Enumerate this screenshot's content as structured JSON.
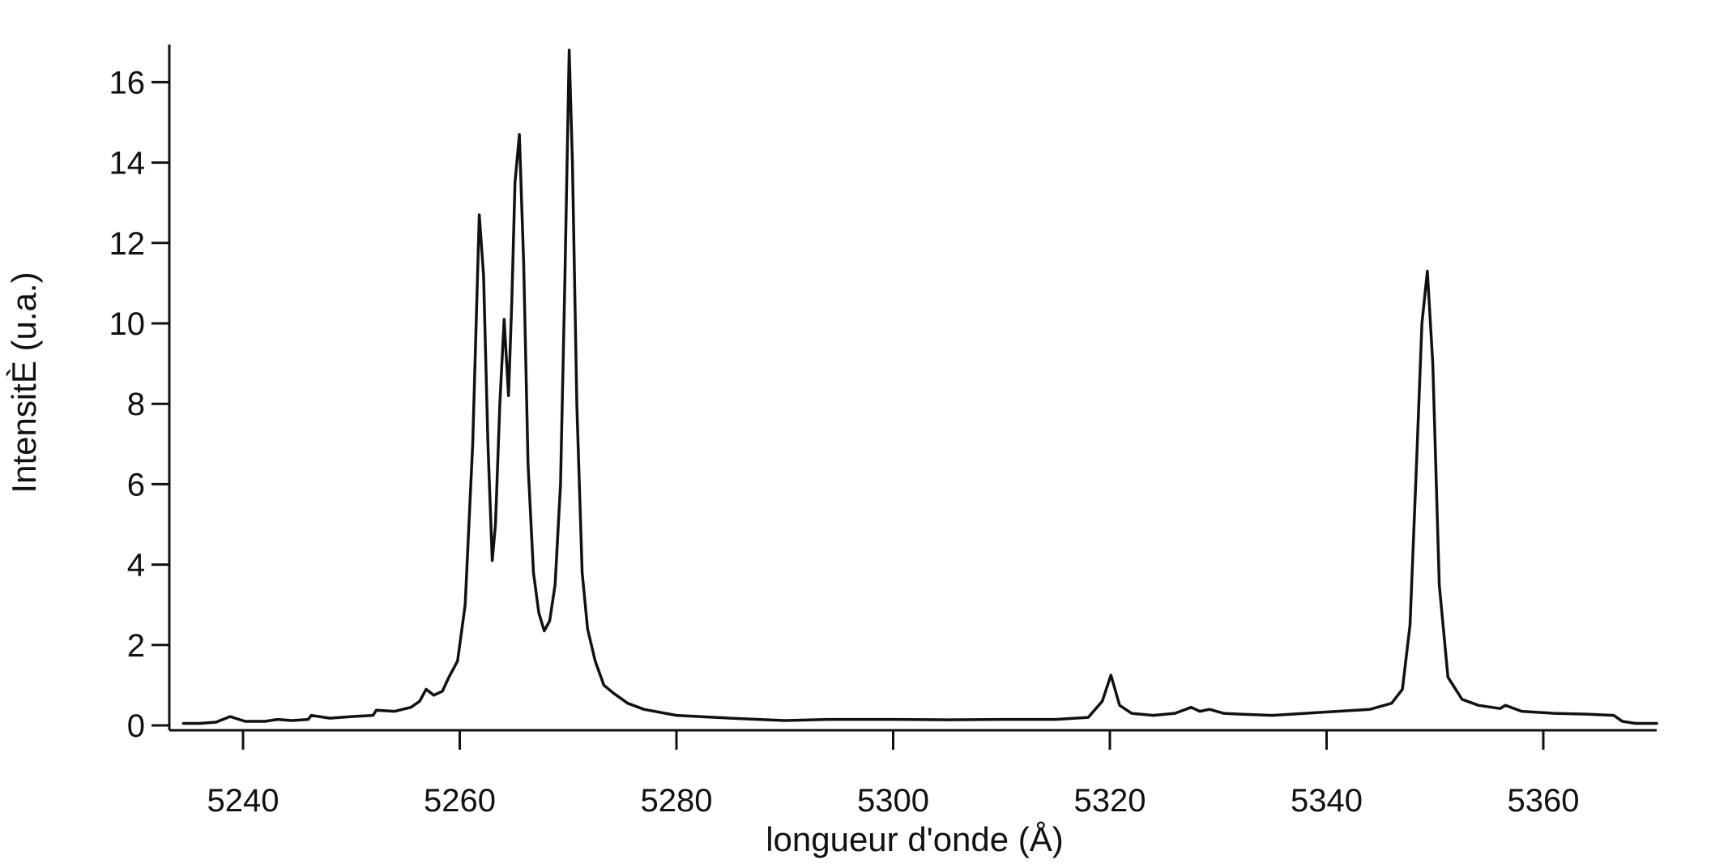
{
  "chart_data": {
    "type": "line",
    "title": "",
    "xlabel": "longueur d'onde (Å)",
    "ylabel": "IntensitÈ (u.a.)",
    "xlim": [
      5233.5,
      5371
    ],
    "ylim": [
      0,
      17
    ],
    "xticks": [
      5240,
      5260,
      5280,
      5300,
      5320,
      5340,
      5360
    ],
    "yticks": [
      0,
      2,
      4,
      6,
      8,
      10,
      12,
      14,
      16
    ],
    "grid": false,
    "legend": "none",
    "line_color": "#111111",
    "series": [
      {
        "x": [
          5234.5,
          5236,
          5237.5,
          5238.8,
          5240.2,
          5242,
          5243.2,
          5244.5,
          5246,
          5246.3,
          5248,
          5250,
          5252,
          5252.3,
          5254,
          5255.5,
          5256.3,
          5256.9,
          5257.6,
          5258.4,
          5259,
          5259.8,
          5260.5,
          5261.2,
          5261.8,
          5262.2,
          5262.6,
          5263,
          5263.3,
          5263.7,
          5264.1,
          5264.5,
          5264.8,
          5265.1,
          5265.5,
          5265.9,
          5266.3,
          5266.8,
          5267.3,
          5267.8,
          5268.3,
          5268.8,
          5269.3,
          5269.7,
          5270.1,
          5270.4,
          5270.8,
          5271.3,
          5271.8,
          5272.5,
          5273.3,
          5274.2,
          5275.5,
          5277,
          5280,
          5285,
          5290,
          5294,
          5300,
          5305,
          5310,
          5315,
          5318,
          5319.3,
          5320.1,
          5320.9,
          5322,
          5324,
          5326,
          5327.5,
          5328.3,
          5329.2,
          5330.5,
          5332,
          5335,
          5338,
          5341,
          5344,
          5346,
          5347,
          5347.7,
          5348.3,
          5348.8,
          5349.3,
          5349.8,
          5350.4,
          5351.2,
          5352.5,
          5354,
          5356,
          5356.5,
          5358,
          5361,
          5364,
          5366.5,
          5367.3,
          5368.5,
          5371
        ],
        "y": [
          0.05,
          0.05,
          0.08,
          0.22,
          0.1,
          0.1,
          0.15,
          0.12,
          0.15,
          0.25,
          0.18,
          0.22,
          0.25,
          0.38,
          0.35,
          0.45,
          0.6,
          0.9,
          0.75,
          0.85,
          1.2,
          1.6,
          3.0,
          7.0,
          12.7,
          11.2,
          7.0,
          4.1,
          5.0,
          8.0,
          10.1,
          8.2,
          10.5,
          13.5,
          14.7,
          11.5,
          6.5,
          3.8,
          2.8,
          2.35,
          2.6,
          3.5,
          6.0,
          11.0,
          16.8,
          14.0,
          8.0,
          3.8,
          2.4,
          1.6,
          1.0,
          0.8,
          0.55,
          0.4,
          0.25,
          0.18,
          0.12,
          0.15,
          0.15,
          0.14,
          0.15,
          0.15,
          0.2,
          0.6,
          1.25,
          0.5,
          0.3,
          0.25,
          0.3,
          0.45,
          0.35,
          0.4,
          0.3,
          0.28,
          0.25,
          0.3,
          0.35,
          0.4,
          0.55,
          0.9,
          2.5,
          6.5,
          10.0,
          11.3,
          9.0,
          3.5,
          1.2,
          0.65,
          0.5,
          0.42,
          0.5,
          0.35,
          0.3,
          0.28,
          0.25,
          0.1,
          0.05,
          0.05
        ]
      }
    ]
  }
}
